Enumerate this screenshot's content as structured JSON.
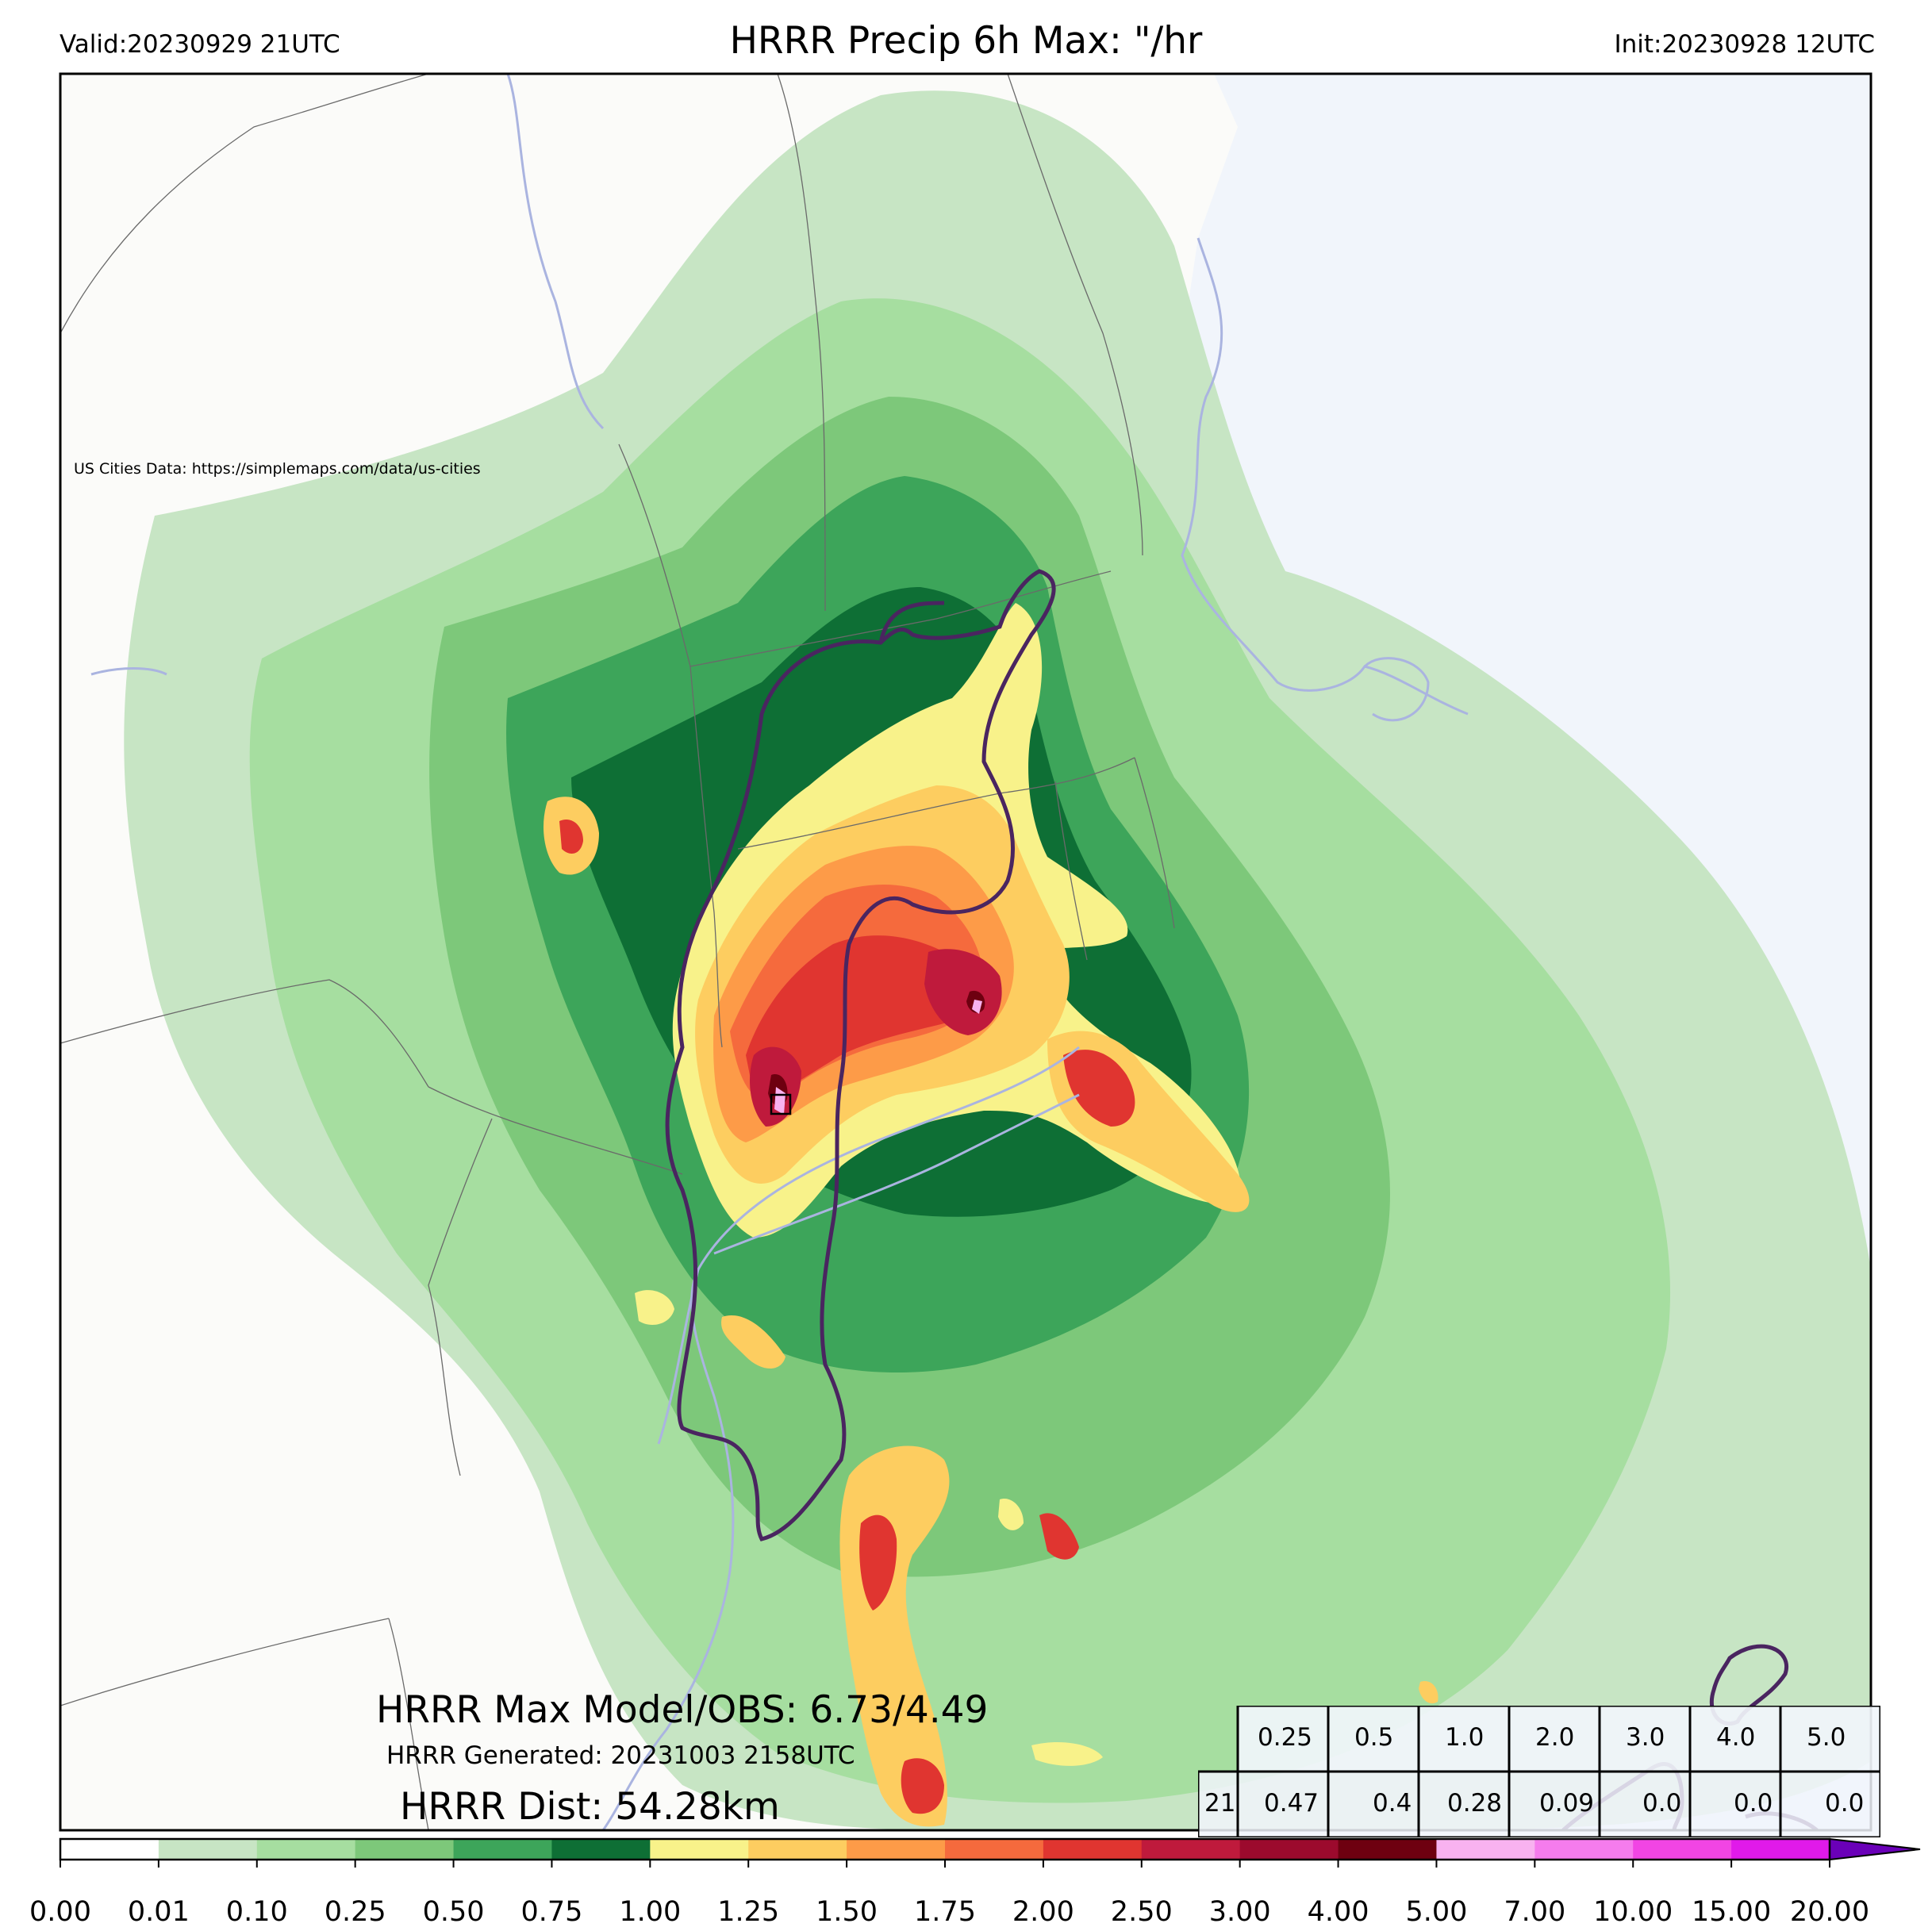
{
  "header": {
    "valid": "Valid:20230929 21UTC",
    "title": "HRRR Precip 6h Max: \"/hr",
    "init": "Init:20230928 12UTC"
  },
  "map": {
    "credit": "US Cities Data: https://simplemaps.com/data/us-cities",
    "colors": {
      "land": "#fbfbf9",
      "ocean": "#f1f5fb",
      "state_lines": "#6a6a6a",
      "water_outline": "#aab4e0",
      "contour_outline": "#4a2560"
    }
  },
  "overlay": {
    "max_label": "HRRR Max Model/OBS: 6.73/4.49",
    "generated": "HRRR Generated: 20231003 2158UTC",
    "distance": "HRRR Dist: 54.28km"
  },
  "stats_table": {
    "thresholds": [
      "0.25",
      "0.5",
      "1.0",
      "2.0",
      "3.0",
      "4.0",
      "5.0"
    ],
    "row_label": "21",
    "values": [
      "0.47",
      "0.4",
      "0.28",
      "0.09",
      "0.0",
      "0.0",
      "0.0"
    ]
  },
  "colorbar": {
    "ticks": [
      "0.00",
      "0.01",
      "0.10",
      "0.25",
      "0.50",
      "0.75",
      "1.00",
      "1.25",
      "1.50",
      "1.75",
      "2.00",
      "2.50",
      "3.00",
      "4.00",
      "5.00",
      "7.00",
      "10.00",
      "15.00",
      "20.00"
    ],
    "colors": [
      "#ffffff",
      "#c7e5c4",
      "#a6dea0",
      "#7dc87a",
      "#3da55a",
      "#0e6f35",
      "#f8f28a",
      "#fdcd60",
      "#fd9b48",
      "#f56a3d",
      "#e03530",
      "#bf1a3c",
      "#9c0a2d",
      "#6e0010",
      "#f8b2f0",
      "#f57ced",
      "#f145e4",
      "#e01aea",
      "#b10ce0"
    ],
    "extend_color": "#6a00b8"
  }
}
